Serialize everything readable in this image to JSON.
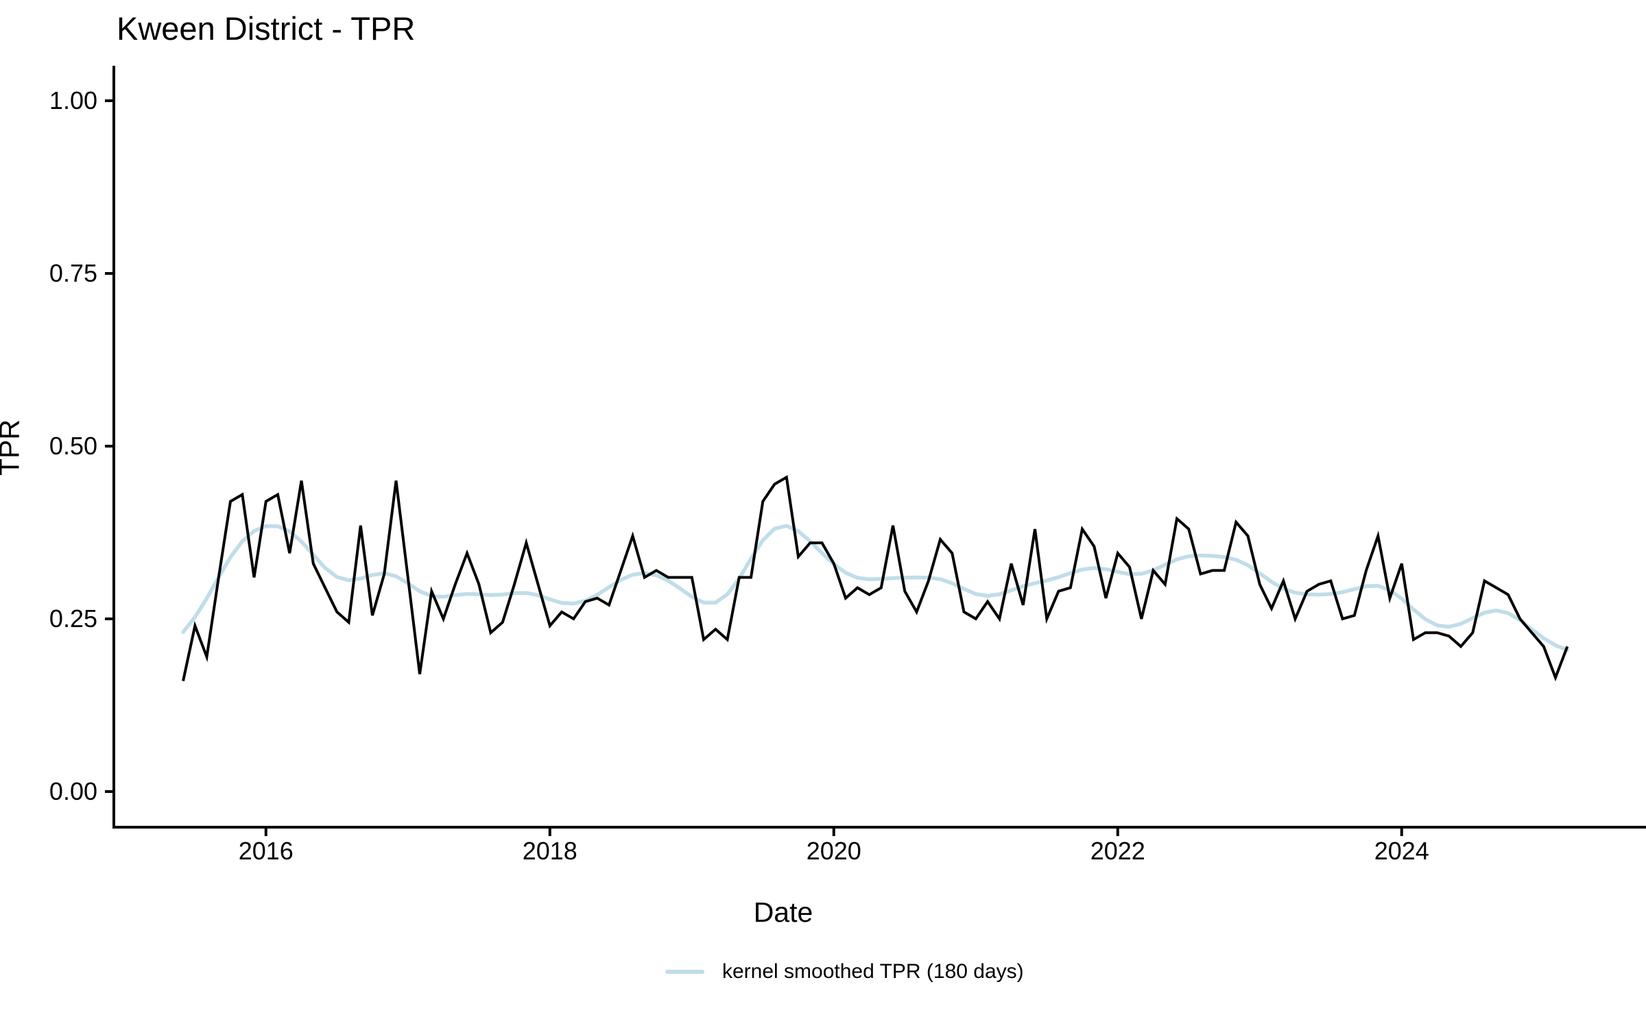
{
  "chart_data": {
    "type": "line",
    "title": "Kween District - TPR",
    "xlabel": "Date",
    "ylabel": "TPR",
    "grid": "off",
    "background": "#ffffff",
    "axis_color": "#000000",
    "x_tick_years": [
      2016,
      2018,
      2020,
      2022,
      2024
    ],
    "x_tick_labels": [
      "2016",
      "2018",
      "2020",
      "2022",
      "2024"
    ],
    "y_tick_values": [
      0.0,
      0.25,
      0.5,
      0.75,
      1.0
    ],
    "y_tick_labels": [
      "0.00",
      "0.25",
      "0.50",
      "0.75",
      "1.00"
    ],
    "ylim": [
      0,
      1
    ],
    "frequency": "monthly",
    "x_start_month": "2015-06",
    "x_end_month": "2025-03",
    "legend_position": "bottom",
    "legend": {
      "label": "kernel smoothed TPR (180 days)"
    },
    "series": [
      {
        "name": "TPR",
        "color": "#000000",
        "line_width": 4,
        "values": [
          0.16,
          0.24,
          0.195,
          0.31,
          0.42,
          0.43,
          0.31,
          0.42,
          0.43,
          0.345,
          0.45,
          0.33,
          0.295,
          0.26,
          0.245,
          0.385,
          0.255,
          0.315,
          0.45,
          0.31,
          0.17,
          0.29,
          0.25,
          0.3,
          0.345,
          0.3,
          0.23,
          0.245,
          0.3,
          0.36,
          0.3,
          0.24,
          0.26,
          0.25,
          0.275,
          0.28,
          0.27,
          0.32,
          0.37,
          0.31,
          0.32,
          0.31,
          0.31,
          0.31,
          0.22,
          0.235,
          0.22,
          0.31,
          0.31,
          0.42,
          0.445,
          0.455,
          0.34,
          0.36,
          0.36,
          0.33,
          0.28,
          0.295,
          0.285,
          0.295,
          0.385,
          0.29,
          0.26,
          0.305,
          0.365,
          0.345,
          0.26,
          0.25,
          0.275,
          0.25,
          0.33,
          0.27,
          0.38,
          0.25,
          0.29,
          0.295,
          0.38,
          0.355,
          0.28,
          0.345,
          0.325,
          0.25,
          0.32,
          0.3,
          0.395,
          0.38,
          0.315,
          0.32,
          0.32,
          0.39,
          0.37,
          0.3,
          0.265,
          0.305,
          0.25,
          0.29,
          0.3,
          0.305,
          0.25,
          0.255,
          0.32,
          0.37,
          0.28,
          0.33,
          0.22,
          0.23,
          0.23,
          0.225,
          0.21,
          0.23,
          0.305,
          0.295,
          0.285,
          0.25,
          0.23,
          0.21,
          0.165,
          0.21
        ]
      },
      {
        "name": "kernel smoothed TPR (180 days)",
        "color": "#c0dde9",
        "line_width": 5.5,
        "derived_from": "TPR",
        "method": "gaussian_kernel_smooth",
        "bandwidth_days": 180,
        "sigma_months": 2.2
      }
    ]
  }
}
